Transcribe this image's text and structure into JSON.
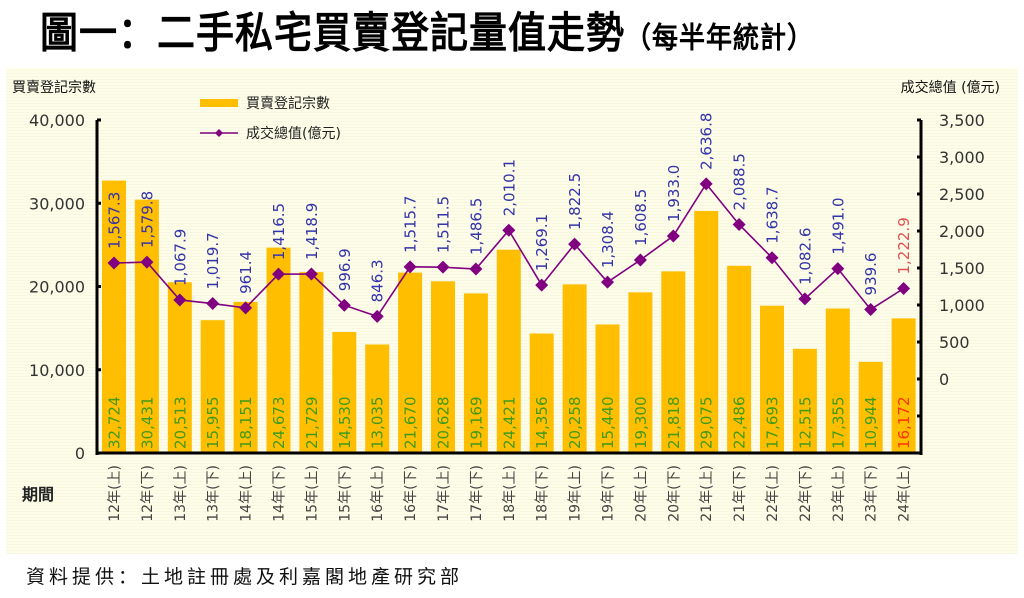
{
  "title": {
    "main": "圖一：二手私宅買賣登記量值走勢",
    "sub": "（每半年統計）"
  },
  "source": "資料提供：土地註冊處及利嘉閣地產研究部",
  "colors": {
    "bar": "#ffbf00",
    "bar_label": "#3f9a1a",
    "bar_label_highlight": "#ff3300",
    "line": "#800080",
    "line_label": "#3333aa",
    "line_label_highlight": "#e05050",
    "axis": "#000000",
    "tick_text": "#333333"
  },
  "chart_data": {
    "type": "bar",
    "title": "圖一：二手私宅買賣登記量值走勢（每半年統計）",
    "xlabel": "期間",
    "ylabel": "買賣登記宗數",
    "y2label": "成交總值 (億元)",
    "ylim": [
      0,
      40000
    ],
    "y2lim": [
      -1000,
      3500
    ],
    "yticks": [
      "0",
      "10,000",
      "20,000",
      "30,000",
      "40,000"
    ],
    "y2ticks": [
      "0",
      "500",
      "1,000",
      "1,500",
      "2,000",
      "2,500",
      "3,000",
      "3,500"
    ],
    "legend": [
      "買賣登記宗數",
      "成交總值(億元)"
    ],
    "legend_position": "top-left",
    "categories": [
      "12年(上)",
      "12年(下)",
      "13年(上)",
      "13年(下)",
      "14年(上)",
      "14年(下)",
      "15年(上)",
      "15年(下)",
      "16年(上)",
      "16年(下)",
      "17年(上)",
      "17年(下)",
      "18年(上)",
      "18年(下)",
      "19年(上)",
      "19年(下)",
      "20年(上)",
      "20年(下)",
      "21年(上)",
      "21年(下)",
      "22年(上)",
      "22年(下)",
      "23年(上)",
      "23年(下)",
      "24年(上)"
    ],
    "series": [
      {
        "name": "買賣登記宗數",
        "type": "bar",
        "axis": "left",
        "values": [
          32724,
          30431,
          20513,
          15955,
          18151,
          24673,
          21729,
          14530,
          13035,
          21670,
          20628,
          19169,
          24421,
          14356,
          20258,
          15440,
          19300,
          21818,
          29075,
          22486,
          17693,
          12515,
          17355,
          10944,
          16172
        ],
        "labels": [
          "32,724",
          "30,431",
          "20,513",
          "15,955",
          "18,151",
          "24,673",
          "21,729",
          "14,530",
          "13,035",
          "21,670",
          "20,628",
          "19,169",
          "24,421",
          "14,356",
          "20,258",
          "15,440",
          "19,300",
          "21,818",
          "29,075",
          "22,486",
          "17,693",
          "12,515",
          "17,355",
          "10,944",
          "16,172"
        ]
      },
      {
        "name": "成交總值(億元)",
        "type": "line",
        "axis": "right",
        "values": [
          1567.3,
          1579.8,
          1067.9,
          1019.7,
          961.4,
          1416.5,
          1418.9,
          996.9,
          846.3,
          1515.7,
          1511.5,
          1486.5,
          2010.1,
          1269.1,
          1822.5,
          1308.4,
          1608.5,
          1933.0,
          2636.8,
          2088.5,
          1638.7,
          1082.6,
          1491.0,
          939.6,
          1222.9
        ],
        "labels": [
          "1,567.3",
          "1,579.8",
          "1,067.9",
          "1,019.7",
          "961.4",
          "1,416.5",
          "1,418.9",
          "996.9",
          "846.3",
          "1,515.7",
          "1,511.5",
          "1,486.5",
          "2,010.1",
          "1,269.1",
          "1,822.5",
          "1,308.4",
          "1,608.5",
          "1,933.0",
          "2,636.8",
          "2,088.5",
          "1,638.7",
          "1,082.6",
          "1,491.0",
          "939.6",
          "1,222.9"
        ]
      }
    ],
    "highlight_last": true,
    "grid": false
  }
}
